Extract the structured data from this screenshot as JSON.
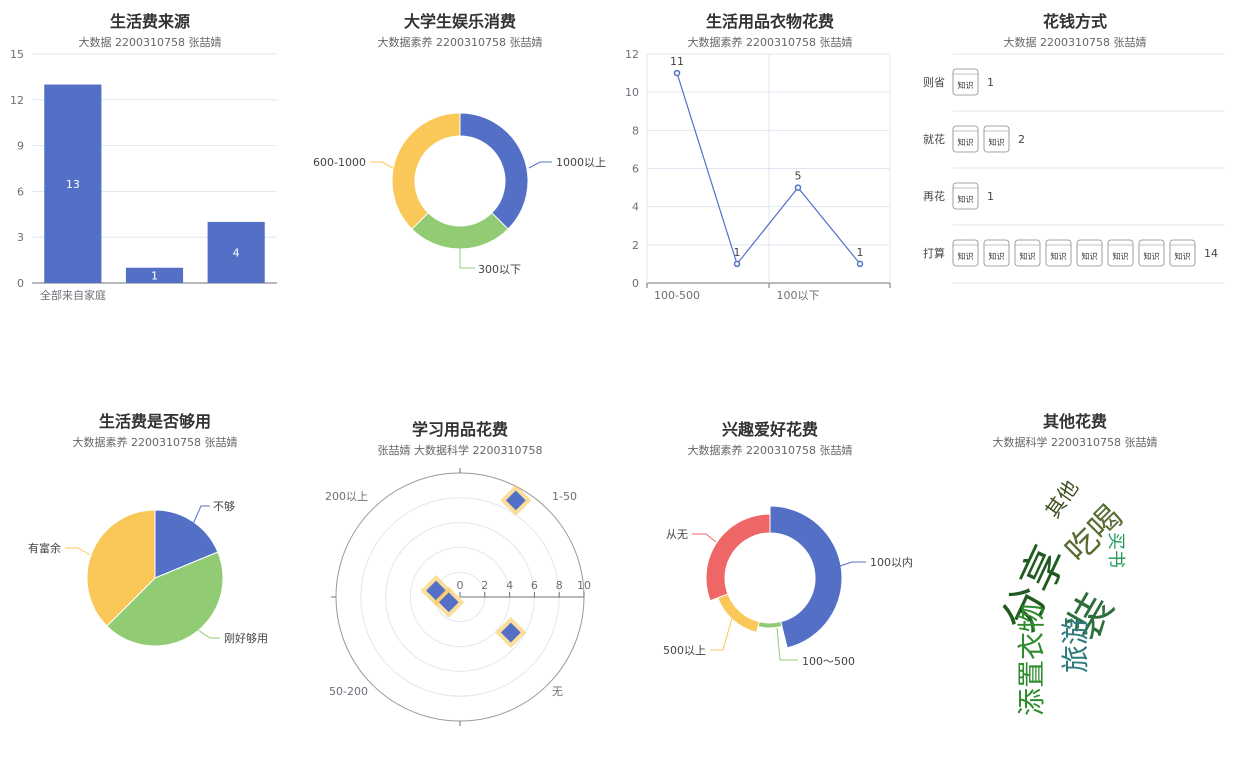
{
  "colors": {
    "blue": "#5470c6",
    "green": "#91cc75",
    "yellow": "#fac858",
    "red": "#ee6666",
    "axis": "#6e7079",
    "grid": "#e0e6f1"
  },
  "charts": [
    {
      "id": "c1",
      "type": "bar",
      "title": "生活费来源",
      "subtitle": "大数据 2200310758 张喆婧",
      "categories": [
        "全部来自家庭",
        "",
        ""
      ],
      "values": [
        13,
        1,
        4
      ],
      "ylim": [
        0,
        15
      ],
      "yticks": [
        0,
        3,
        6,
        9,
        12,
        15
      ]
    },
    {
      "id": "c2",
      "type": "pie",
      "title": "大学生娱乐消费",
      "subtitle": "大数据素养 2200310758 张喆婧",
      "donut": true,
      "slices": [
        {
          "name": "1000以上",
          "value": 3,
          "color": "#5470c6"
        },
        {
          "name": "300以下",
          "value": 2,
          "color": "#91cc75"
        },
        {
          "name": "600-1000",
          "value": 3,
          "color": "#fac858"
        }
      ]
    },
    {
      "id": "c3",
      "type": "line",
      "title": "生活用品衣物花费",
      "subtitle": "大数据素养 2200310758 张喆婧",
      "x": [
        "100-500",
        "",
        "100以下",
        ""
      ],
      "values": [
        11,
        1,
        5,
        1
      ],
      "ylim": [
        0,
        12
      ],
      "yticks": [
        0,
        2,
        4,
        6,
        8,
        10,
        12
      ]
    },
    {
      "id": "c4",
      "type": "pictorialBar",
      "title": "花钱方式",
      "subtitle": "大数据 2200310758 张喆婧",
      "symbol_label": "知识",
      "rows": [
        {
          "label": "则省",
          "value": 1
        },
        {
          "label": "就花",
          "value": 2
        },
        {
          "label": "再花",
          "value": 1
        },
        {
          "label": "打算",
          "value": 14
        }
      ],
      "max_symbols": 8
    },
    {
      "id": "c5",
      "type": "pie",
      "title": "生活费是否够用",
      "subtitle": "大数据素养 2200310758 张喆婧",
      "donut": false,
      "slices": [
        {
          "name": "不够",
          "value": 3,
          "color": "#5470c6"
        },
        {
          "name": "刚好够用",
          "value": 7,
          "color": "#91cc75"
        },
        {
          "name": "有富余",
          "value": 6,
          "color": "#fac858"
        }
      ]
    },
    {
      "id": "c6",
      "type": "scatter",
      "title": "学习用品花费",
      "subtitle": "张喆婧 大数据科学 2200310758",
      "polar": true,
      "rlim": [
        0,
        10
      ],
      "rticks": [
        0,
        2,
        4,
        6,
        8,
        10
      ],
      "angle_labels": [
        "1-50",
        "200以上",
        "50-200",
        "无"
      ],
      "points": [
        {
          "r": 9,
          "angle_deg": 60
        },
        {
          "r": 2,
          "angle_deg": 165
        },
        {
          "r": 1,
          "angle_deg": 205
        },
        {
          "r": 5,
          "angle_deg": 325
        }
      ]
    },
    {
      "id": "c7",
      "type": "pie",
      "title": "兴趣爱好花费",
      "subtitle": "大数据素养 2200310758 张喆婧",
      "donut": true,
      "rose": true,
      "slices": [
        {
          "name": "100以内",
          "value": 6,
          "color": "#5470c6"
        },
        {
          "name": "100～500",
          "value": 1,
          "color": "#91cc75"
        },
        {
          "name": "500以上",
          "value": 2,
          "color": "#fac858"
        },
        {
          "name": "从无",
          "value": 4,
          "color": "#ee6666"
        }
      ]
    },
    {
      "id": "c8",
      "type": "wordcloud",
      "title": "其他花费",
      "subtitle": "大数据科学 2200310758 张喆婧",
      "words": [
        {
          "text": "其他",
          "color": "#3b4d1f"
        },
        {
          "text": "吃喝",
          "color": "#556b2f"
        },
        {
          "text": "买书",
          "color": "#1f9a5a"
        },
        {
          "text": "分享",
          "color": "#1f5a1f"
        },
        {
          "text": "装",
          "color": "#2d6e3a"
        },
        {
          "text": "添置衣物",
          "color": "#2e8b2e"
        },
        {
          "text": "旅游",
          "color": "#2c7a7b"
        }
      ]
    }
  ]
}
